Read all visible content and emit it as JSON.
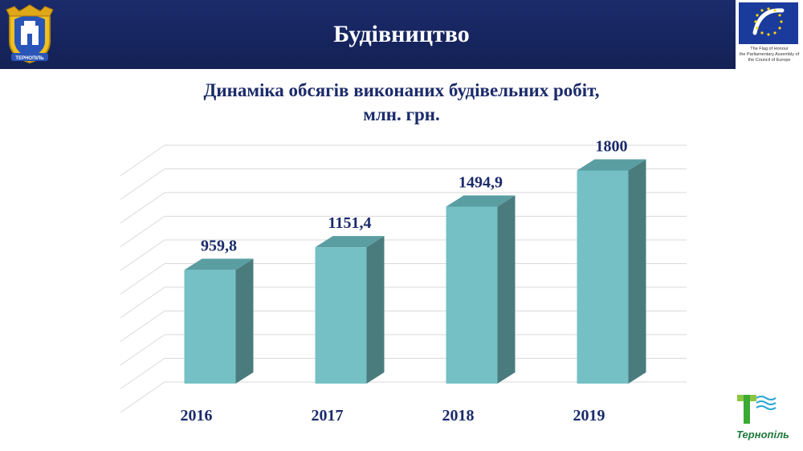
{
  "header": {
    "title": "Будівництво"
  },
  "coe": {
    "caption": [
      "The Flag of Honour",
      "the Parliamentary Assembly of",
      "the Council of Europe"
    ]
  },
  "coat_of_arms": {
    "icon": "tower-coat-of-arms-icon",
    "label": "ТЕРНОПІЛЬ"
  },
  "city_logo": {
    "icon": "ternopil-wave-logo-icon",
    "label": "Тернопіль"
  },
  "colors": {
    "header": "#1b2b6b",
    "bar_front": "#74c0c5",
    "bar_side": "#4a7c7e",
    "bar_top": "#5a9ea2",
    "text": "#1b2b6b"
  },
  "chart_data": {
    "type": "bar",
    "title": "Динаміка обсягів виконаних будівельних робіт,",
    "subtitle": "млн. грн.",
    "categories": [
      "2016",
      "2017",
      "2018",
      "2019"
    ],
    "values": [
      959.8,
      1151.4,
      1494.9,
      1800
    ],
    "value_labels": [
      "959,8",
      "1151,4",
      "1494,9",
      "1800"
    ],
    "ylim": [
      0,
      2000
    ],
    "grid": true,
    "legend": "none",
    "style": "3d-columns"
  }
}
